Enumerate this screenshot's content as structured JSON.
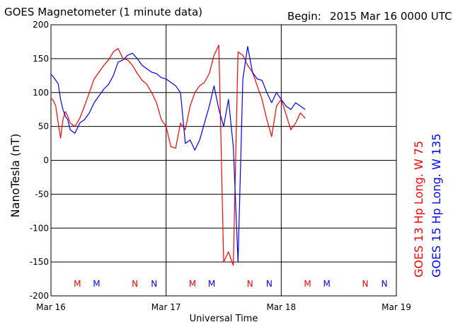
{
  "header": {
    "title": "GOES Magnetometer (1 minute data)",
    "begin_label": "Begin:",
    "begin_value": "2015 Mar 16 0000 UTC"
  },
  "chart_data": {
    "type": "line",
    "title": "GOES Magnetometer (1 minute data)",
    "xlabel": "Universal Time",
    "ylabel": "NanoTesla (nT)",
    "ylim": [
      -200,
      200
    ],
    "xlim_hours": [
      0,
      72
    ],
    "x_unit": "hours since 2015 Mar 16 0000 UTC",
    "grid": true,
    "y_ticks": [
      -200,
      -150,
      -100,
      -50,
      0,
      50,
      100,
      150,
      200
    ],
    "y_tick_labels": [
      "-200",
      "-150",
      "-100",
      "-50",
      "0",
      "50",
      "100",
      "150",
      "200"
    ],
    "x_ticks": [
      {
        "hour": 0,
        "label": "Mar 16"
      },
      {
        "hour": 24,
        "label": "Mar 17"
      },
      {
        "hour": 48,
        "label": "Mar 18"
      },
      {
        "hour": 72,
        "label": "Mar 19"
      }
    ],
    "series": [
      {
        "name": "GOES 13 Hp  Long. W 75",
        "color": "#ff0000",
        "x": [
          0,
          0.5,
          1,
          1.5,
          2,
          2.5,
          3,
          3.5,
          4,
          5,
          6,
          7,
          8,
          9,
          10,
          11,
          12,
          13,
          14,
          15,
          16,
          17,
          18,
          19,
          20,
          21,
          22,
          23,
          24,
          25,
          26,
          27,
          28,
          29,
          30,
          31,
          32,
          33,
          34,
          35,
          36,
          37,
          38,
          39,
          40,
          41,
          42,
          43,
          44,
          45,
          46,
          47,
          48,
          49,
          50,
          51,
          52,
          53
        ],
        "y": [
          92,
          88,
          80,
          55,
          33,
          60,
          72,
          65,
          55,
          50,
          62,
          80,
          100,
          120,
          130,
          140,
          148,
          160,
          165,
          150,
          148,
          140,
          128,
          118,
          112,
          100,
          85,
          60,
          50,
          20,
          18,
          55,
          45,
          80,
          100,
          110,
          115,
          128,
          155,
          170,
          -150,
          -135,
          -155,
          160,
          155,
          140,
          130,
          110,
          90,
          60,
          35,
          80,
          90,
          68,
          45,
          55,
          70,
          62
        ]
      },
      {
        "name": "GOES 15 Hp  Long. W 135",
        "color": "#0000ff",
        "x": [
          0,
          0.5,
          1,
          1.5,
          2,
          2.5,
          3,
          3.5,
          4,
          5,
          6,
          7,
          8,
          9,
          10,
          11,
          12,
          13,
          14,
          15,
          16,
          17,
          18,
          19,
          20,
          21,
          22,
          23,
          24,
          25,
          26,
          27,
          28,
          29,
          30,
          31,
          32,
          33,
          34,
          35,
          36,
          37,
          38,
          39,
          40,
          41,
          42,
          43,
          44,
          45,
          46,
          47,
          48,
          49,
          50,
          51,
          52,
          53
        ],
        "y": [
          127,
          123,
          118,
          113,
          90,
          75,
          65,
          60,
          45,
          40,
          55,
          60,
          70,
          85,
          95,
          105,
          112,
          125,
          145,
          148,
          155,
          158,
          150,
          140,
          135,
          130,
          128,
          122,
          120,
          115,
          110,
          100,
          25,
          30,
          15,
          30,
          55,
          80,
          110,
          75,
          50,
          90,
          20,
          -150,
          120,
          168,
          130,
          120,
          118,
          100,
          85,
          100,
          90,
          80,
          75,
          85,
          80,
          75
        ]
      }
    ],
    "markers": [
      {
        "label": "M",
        "hour": 5.5,
        "color": "#ff0000"
      },
      {
        "label": "M",
        "hour": 9.5,
        "color": "#0000ff"
      },
      {
        "label": "N",
        "hour": 17.5,
        "color": "#ff0000"
      },
      {
        "label": "N",
        "hour": 21.5,
        "color": "#0000ff"
      },
      {
        "label": "M",
        "hour": 29.5,
        "color": "#ff0000"
      },
      {
        "label": "M",
        "hour": 33.5,
        "color": "#0000ff"
      },
      {
        "label": "N",
        "hour": 41.5,
        "color": "#ff0000"
      },
      {
        "label": "N",
        "hour": 45.5,
        "color": "#0000ff"
      },
      {
        "label": "M",
        "hour": 53.5,
        "color": "#ff0000"
      },
      {
        "label": "M",
        "hour": 57.5,
        "color": "#0000ff"
      },
      {
        "label": "N",
        "hour": 65.5,
        "color": "#ff0000"
      },
      {
        "label": "N",
        "hour": 69.5,
        "color": "#0000ff"
      }
    ],
    "right_labels": [
      {
        "text": "GOES 13 Hp  Long. W 75",
        "color": "#ff0000"
      },
      {
        "text": "GOES 15 Hp  Long. W 135",
        "color": "#0000ff"
      }
    ]
  }
}
